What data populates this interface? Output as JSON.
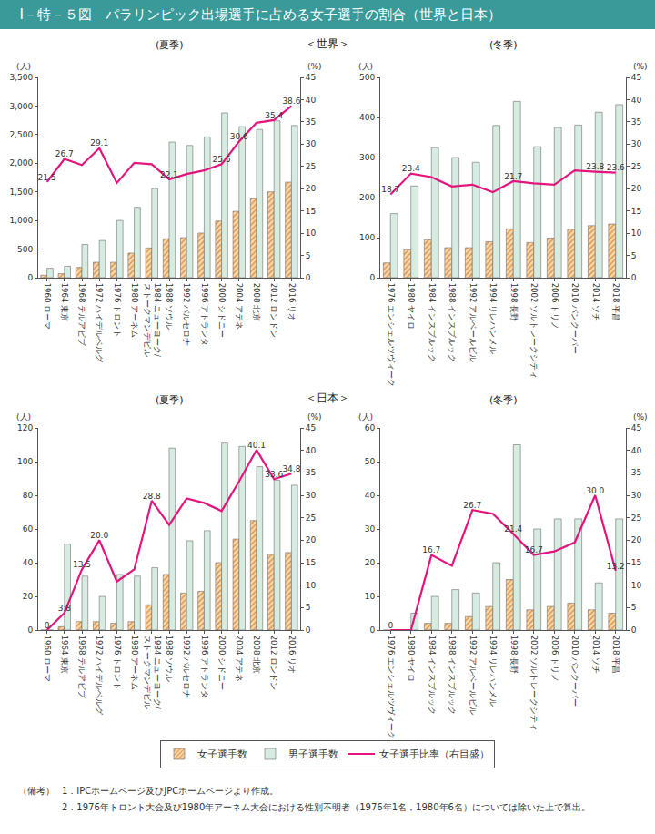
{
  "chart_data": {
    "type": "bar",
    "title": "Ⅰ－特－５図　パラリンピック出場選手に占める女子選手の割合（世界と日本）",
    "annotations": [
      "（備考）",
      "1．IPCホームページ及びJPCホームページより作成。",
      "2．1976年トロント大会及び1980年アーネム大会における性別不明者（1976年1名，1980年6名）については除いた上で算出。"
    ],
    "legend": "bottom",
    "grid": false,
    "sections": [
      {
        "title": "＜世界＞",
        "charts": [
          {
            "type": "bar",
            "subtitle": "(夏季)",
            "ylabel": "(人)",
            "y2label": "(%)",
            "categories": [
              "1960 ローマ",
              "1964 東京",
              "1968 テルアビブ",
              "1972 ハイデルベルグ",
              "1976 トロント",
              "1980 アーネム",
              "1984 ニューヨーク/ストークマンデビル",
              "1988 ソウル",
              "1992 バルセロナ",
              "1996 アトランタ",
              "2000 シドニー",
              "2004 アテネ",
              "2008 北京",
              "2012 ロンドン",
              "2016 リオ"
            ],
            "ylim": [
              0,
              3500
            ],
            "yticks": [
              0,
              500,
              {
                "value": 1000,
                "label": "1,000"
              },
              {
                "value": 1500,
                "label": "1,500"
              },
              {
                "value": 2000,
                "label": "2,000"
              },
              {
                "value": 2500,
                "label": "2,500"
              },
              {
                "value": 3000,
                "label": "3,000"
              },
              {
                "value": 3500,
                "label": "3,500"
              }
            ],
            "y2lim": [
              0,
              45
            ],
            "y2ticks": [
              0,
              5,
              10,
              15,
              20,
              25,
              30,
              35,
              40,
              45
            ],
            "series": [
              {
                "name": "女子選手数",
                "type": "bar",
                "color": "#fbd8ab",
                "marker": "hatch",
                "values": [
                  44,
                  70,
                  180,
                  270,
                  270,
                  430,
                  520,
                  680,
                  700,
                  780,
                  990,
                  1160,
                  1380,
                  1500,
                  1670
                ]
              },
              {
                "name": "男子選手数",
                "type": "bar",
                "color": "#d6ece1",
                "values": [
                  165,
                  200,
                  580,
                  650,
                  1000,
                  1230,
                  1560,
                  2370,
                  2310,
                  2460,
                  2880,
                  2640,
                  2590,
                  2740,
                  2660
                ]
              },
              {
                "name": "女子選手比率（右目盛）",
                "type": "line",
                "color": "#e4147c",
                "axis": "y2",
                "data_labels": true,
                "values": [
                  21.5,
                  26.7,
                  25.3,
                  29.1,
                  21.3,
                  25.8,
                  25.5,
                  22.1,
                  23.3,
                  24.1,
                  25.5,
                  30.6,
                  34.8,
                  35.4,
                  38.6
                ],
                "value_labels": [
                  "21.5",
                  "26.7",
                  null,
                  "29.1",
                  null,
                  null,
                  null,
                  "22.1",
                  null,
                  null,
                  "25.5",
                  "30.6",
                  null,
                  "35.4",
                  "38.6"
                ]
              }
            ]
          },
          {
            "type": "bar",
            "subtitle": "(冬季)",
            "ylabel": "(人)",
            "y2label": "(%)",
            "categories": [
              "1976 エンシェルツヴィーク",
              "1980 ヤイロ",
              "1984 インスブルック",
              "1988 インスブルック",
              "1992 アルベールビル",
              "1994 リレハンメル",
              "1998 長野",
              "2002 ソルトレークシティ",
              "2006 トリノ",
              "2010 バンクーバー",
              "2014 ソチ",
              "2018 平昌"
            ],
            "ylim": [
              0,
              500
            ],
            "yticks": [
              0,
              100,
              200,
              300,
              400,
              500
            ],
            "y2lim": [
              0,
              45
            ],
            "y2ticks": [
              0,
              5,
              10,
              15,
              20,
              25,
              30,
              35,
              40,
              45
            ],
            "series": [
              {
                "name": "女子選手数",
                "type": "bar",
                "color": "#fbd8ab",
                "marker": "hatch",
                "values": [
                  37,
                  70,
                  95,
                  75,
                  75,
                  90,
                  122,
                  88,
                  99,
                  121,
                  130,
                  134
                ]
              },
              {
                "name": "男子選手数",
                "type": "bar",
                "color": "#d6ece1",
                "values": [
                  160,
                  229,
                  325,
                  300,
                  288,
                  380,
                  440,
                  327,
                  375,
                  381,
                  413,
                  432
                ]
              },
              {
                "name": "女子選手比率（右目盛）",
                "type": "line",
                "color": "#e4147c",
                "axis": "y2",
                "data_labels": true,
                "values": [
                  18.7,
                  23.4,
                  22.6,
                  20.5,
                  20.9,
                  19.2,
                  21.7,
                  21.2,
                  20.9,
                  24.1,
                  23.8,
                  23.6
                ],
                "value_labels": [
                  "18.7",
                  "23.4",
                  null,
                  null,
                  null,
                  null,
                  "21.7",
                  null,
                  null,
                  null,
                  "23.8",
                  "23.6"
                ]
              }
            ]
          }
        ]
      },
      {
        "title": "＜日本＞",
        "charts": [
          {
            "type": "bar",
            "subtitle": "(夏季)",
            "ylabel": "(人)",
            "y2label": "(%)",
            "categories": [
              "1960 ローマ",
              "1964 東京",
              "1968 テルアビブ",
              "1972 ハイデルベルグ",
              "1976 トロント",
              "1980 アーネム",
              "1984 ニューヨーク/ストークマンデビル",
              "1988 ソウル",
              "1992 バルセロナ",
              "1996 アトランタ",
              "2000 シドニー",
              "2004 アテネ",
              "2008 北京",
              "2012 ロンドン",
              "2016 リオ"
            ],
            "ylim": [
              0,
              120
            ],
            "yticks": [
              0,
              20,
              40,
              60,
              80,
              100,
              120
            ],
            "y2lim": [
              0,
              45
            ],
            "y2ticks": [
              0,
              5,
              10,
              15,
              20,
              25,
              30,
              35,
              40,
              45
            ],
            "series": [
              {
                "name": "女子選手数",
                "type": "bar",
                "color": "#fbd8ab",
                "marker": "hatch",
                "values": [
                  0,
                  2,
                  5,
                  5,
                  4,
                  5,
                  15,
                  33,
                  22,
                  23,
                  40,
                  54,
                  65,
                  45,
                  46
                ]
              },
              {
                "name": "男子選手数",
                "type": "bar",
                "color": "#d6ece1",
                "values": [
                  0,
                  51,
                  32,
                  20,
                  33,
                  32,
                  37,
                  108,
                  53,
                  59,
                  111,
                  109,
                  97,
                  89,
                  86
                ]
              },
              {
                "name": "女子選手比率（右目盛）",
                "type": "line",
                "color": "#e4147c",
                "axis": "y2",
                "data_labels": true,
                "values": [
                  0,
                  3.8,
                  13.5,
                  20.0,
                  10.8,
                  13.5,
                  28.8,
                  23.4,
                  29.3,
                  28.3,
                  26.5,
                  33.1,
                  40.1,
                  33.6,
                  34.8
                ],
                "value_labels": [
                  "0",
                  "3.8",
                  "13.5",
                  "20.0",
                  null,
                  null,
                  "28.8",
                  null,
                  null,
                  null,
                  null,
                  null,
                  "40.1",
                  "33.6",
                  "34.8"
                ]
              }
            ]
          },
          {
            "type": "bar",
            "subtitle": "(冬季)",
            "ylabel": "(人)",
            "y2label": "(%)",
            "categories": [
              "1976 エンシェルツヴィーク",
              "1980 ヤイロ",
              "1984 インスブルック",
              "1988 インスブルック",
              "1992 アルベールビル",
              "1994 リレハンメル",
              "1998 長野",
              "2002 ソルトレークシティ",
              "2006 トリノ",
              "2010 バンクーバー",
              "2014 ソチ",
              "2018 平昌"
            ],
            "ylim": [
              0,
              60
            ],
            "yticks": [
              0,
              10,
              20,
              30,
              40,
              50,
              60
            ],
            "y2lim": [
              0,
              45
            ],
            "y2ticks": [
              0,
              5,
              10,
              15,
              20,
              25,
              30,
              35,
              40,
              45
            ],
            "series": [
              {
                "name": "女子選手数",
                "type": "bar",
                "color": "#fbd8ab",
                "marker": "hatch",
                "values": [
                  0,
                  0,
                  2,
                  2,
                  4,
                  7,
                  15,
                  6,
                  7,
                  8,
                  6,
                  5
                ]
              },
              {
                "name": "男子選手数",
                "type": "bar",
                "color": "#d6ece1",
                "values": [
                  0,
                  5,
                  10,
                  12,
                  11,
                  20,
                  55,
                  30,
                  33,
                  33,
                  14,
                  33
                ]
              },
              {
                "name": "女子選手比率（右目盛）",
                "type": "line",
                "color": "#e4147c",
                "axis": "y2",
                "data_labels": true,
                "values": [
                  0,
                  0,
                  16.7,
                  14.3,
                  26.7,
                  25.9,
                  21.4,
                  16.7,
                  17.5,
                  19.5,
                  30,
                  13.2
                ],
                "value_labels": [
                  "0",
                  null,
                  "16.7",
                  null,
                  "26.7",
                  null,
                  "21.4",
                  "16.7",
                  null,
                  null,
                  "30.0",
                  "13.2"
                ]
              }
            ]
          }
        ]
      }
    ]
  }
}
